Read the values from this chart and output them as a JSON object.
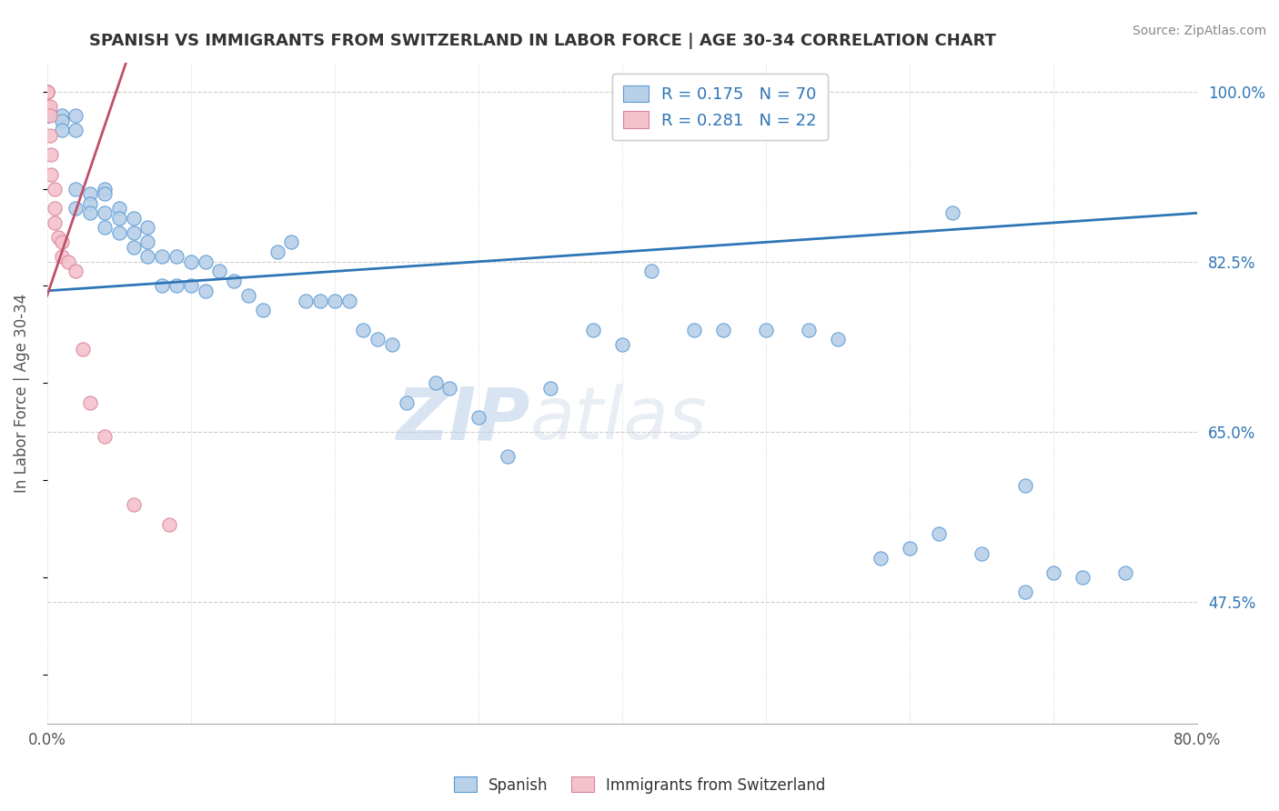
{
  "title": "SPANISH VS IMMIGRANTS FROM SWITZERLAND IN LABOR FORCE | AGE 30-34 CORRELATION CHART",
  "source": "Source: ZipAtlas.com",
  "ylabel": "In Labor Force | Age 30-34",
  "legend_label_1": "Spanish",
  "legend_label_2": "Immigrants from Switzerland",
  "r1": 0.175,
  "n1": 70,
  "r2": 0.281,
  "n2": 22,
  "blue_color": "#b8d0e8",
  "blue_edge_color": "#5b9bd5",
  "blue_line_color": "#2e75b6",
  "pink_color": "#f4c2cc",
  "pink_edge_color": "#d9849a",
  "pink_line_color": "#c0506a",
  "legend_r_color": "#2e75b6",
  "blue_scatter_x": [
    0.0,
    0.0,
    0.01,
    0.01,
    0.01,
    0.02,
    0.02,
    0.02,
    0.02,
    0.03,
    0.03,
    0.03,
    0.04,
    0.04,
    0.04,
    0.04,
    0.05,
    0.05,
    0.05,
    0.06,
    0.06,
    0.06,
    0.07,
    0.07,
    0.07,
    0.08,
    0.08,
    0.09,
    0.09,
    0.1,
    0.1,
    0.11,
    0.11,
    0.12,
    0.13,
    0.14,
    0.15,
    0.16,
    0.17,
    0.18,
    0.19,
    0.2,
    0.21,
    0.22,
    0.23,
    0.24,
    0.25,
    0.27,
    0.28,
    0.3,
    0.32,
    0.35,
    0.38,
    0.4,
    0.42,
    0.45,
    0.47,
    0.5,
    0.53,
    0.55,
    0.58,
    0.6,
    0.62,
    0.65,
    0.68,
    0.7,
    0.72,
    0.75,
    0.63,
    0.68
  ],
  "blue_scatter_y": [
    0.975,
    0.975,
    0.975,
    0.97,
    0.96,
    0.975,
    0.96,
    0.9,
    0.88,
    0.895,
    0.885,
    0.875,
    0.9,
    0.895,
    0.875,
    0.86,
    0.88,
    0.87,
    0.855,
    0.87,
    0.855,
    0.84,
    0.86,
    0.845,
    0.83,
    0.83,
    0.8,
    0.83,
    0.8,
    0.825,
    0.8,
    0.825,
    0.795,
    0.815,
    0.805,
    0.79,
    0.775,
    0.835,
    0.845,
    0.785,
    0.785,
    0.785,
    0.785,
    0.755,
    0.745,
    0.74,
    0.68,
    0.7,
    0.695,
    0.665,
    0.625,
    0.695,
    0.755,
    0.74,
    0.815,
    0.755,
    0.755,
    0.755,
    0.755,
    0.745,
    0.52,
    0.53,
    0.545,
    0.525,
    0.485,
    0.505,
    0.5,
    0.505,
    0.875,
    0.595
  ],
  "pink_scatter_x": [
    0.0,
    0.0,
    0.0,
    0.0,
    0.002,
    0.002,
    0.002,
    0.003,
    0.003,
    0.005,
    0.005,
    0.005,
    0.008,
    0.01,
    0.01,
    0.015,
    0.02,
    0.025,
    0.03,
    0.04,
    0.06,
    0.085
  ],
  "pink_scatter_y": [
    1.0,
    1.0,
    1.0,
    0.985,
    0.985,
    0.975,
    0.955,
    0.935,
    0.915,
    0.9,
    0.88,
    0.865,
    0.85,
    0.845,
    0.83,
    0.825,
    0.815,
    0.735,
    0.68,
    0.645,
    0.575,
    0.555
  ],
  "xmin": 0.0,
  "xmax": 0.8,
  "ymin": 0.35,
  "ymax": 1.03,
  "blue_line_x": [
    0.0,
    0.8
  ],
  "blue_line_y": [
    0.795,
    0.875
  ],
  "pink_line_x": [
    0.0,
    0.055
  ],
  "pink_line_y": [
    0.79,
    1.03
  ],
  "yticks": [
    1.0,
    0.825,
    0.65,
    0.475
  ],
  "ytick_labels": [
    "100.0%",
    "82.5%",
    "65.0%",
    "47.5%"
  ],
  "xticks": [
    0.0,
    0.8
  ],
  "xtick_labels": [
    "0.0%",
    "80.0%"
  ]
}
